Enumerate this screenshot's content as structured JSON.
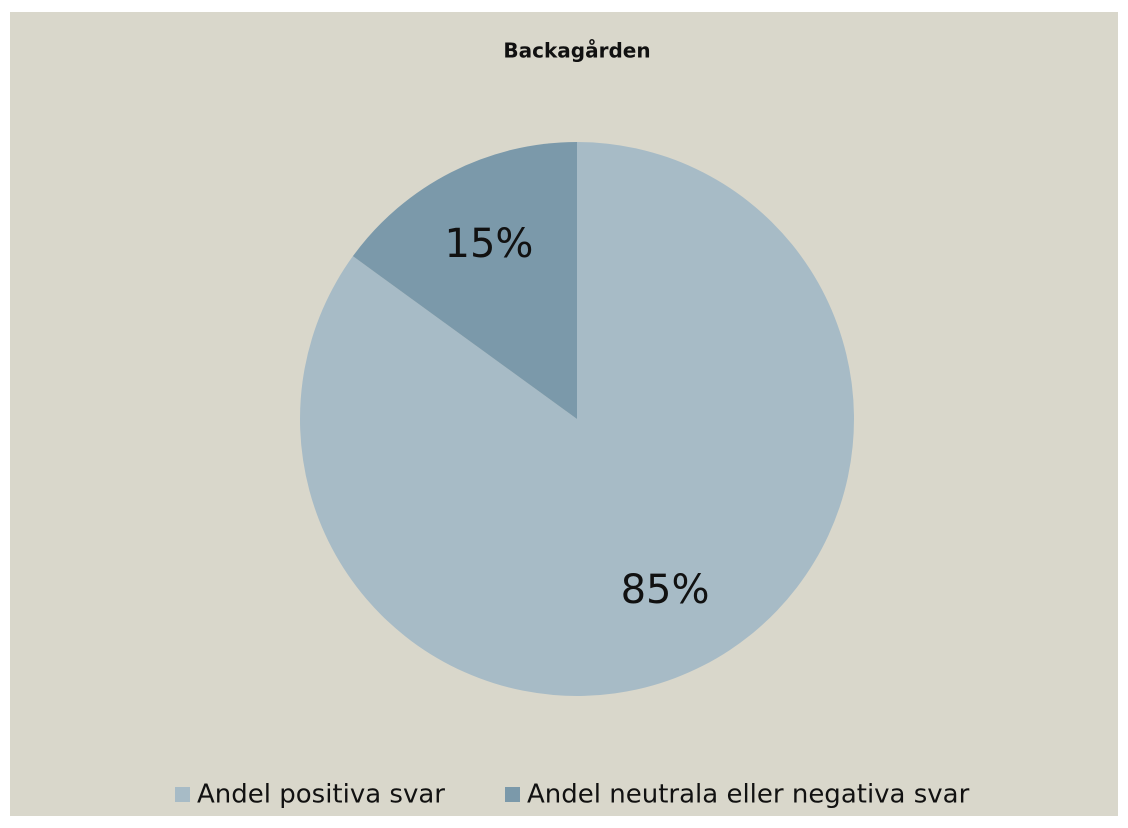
{
  "chart_data": {
    "type": "pie",
    "title": "Backagården",
    "categories": [
      "Andel positiva svar",
      "Andel neutrala eller negativa svar"
    ],
    "values": [
      85,
      15
    ],
    "value_labels": [
      "85%",
      "15%"
    ],
    "colors": [
      "#a7bbc6",
      "#7b99aa"
    ],
    "legend": "bottom"
  }
}
